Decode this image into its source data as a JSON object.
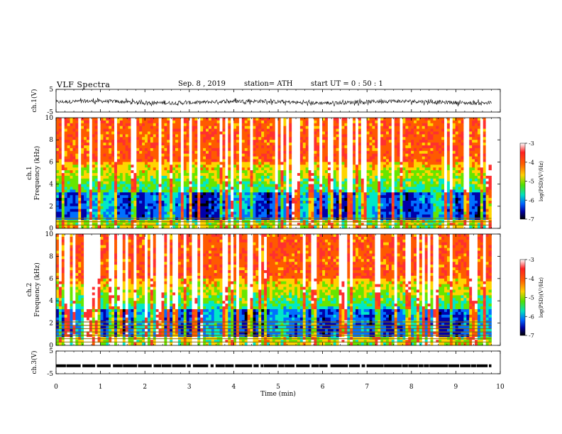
{
  "header": {
    "title": "VLF  Spectra",
    "date": "Sep. 8  , 2019",
    "station": "station= ATH",
    "start": "start  UT  =    0  : 50 : 1"
  },
  "chart_data": {
    "type": "heatmap",
    "x_axis": {
      "label": "Time  (min)",
      "range": [
        0,
        10
      ],
      "ticks": [
        "0",
        "1",
        "2",
        "3",
        "4",
        "5",
        "6",
        "7",
        "8",
        "9",
        "10"
      ]
    },
    "data_extent_min": 9.8,
    "panels": [
      {
        "name": "ch1-waveform",
        "type": "line",
        "ylabel": "ch.1(V)",
        "ylim": [
          -5,
          5
        ],
        "yticks": [
          "5",
          "-5"
        ]
      },
      {
        "name": "ch1-spectrogram",
        "type": "heatmap",
        "ylabel": "ch.1\nFrequency  (kHz)",
        "ylim": [
          0,
          10
        ],
        "yticks": [
          "0",
          "2",
          "4",
          "6",
          "8",
          "10"
        ],
        "colorbar": {
          "label": "log(PSD)(V²/Hz)",
          "ticks": [
            "-3",
            "-4",
            "-5",
            "-6",
            "-7"
          ],
          "range": [
            -7,
            -3
          ]
        },
        "harmonic_lines_khz": [
          0.3,
          0.6,
          0.9
        ]
      },
      {
        "name": "ch2-spectrogram",
        "type": "heatmap",
        "ylabel": "ch.2\nFrequency  (kHz)",
        "ylim": [
          0,
          10
        ],
        "yticks": [
          "0",
          "2",
          "4",
          "6",
          "8",
          "10"
        ],
        "colorbar": {
          "label": "log(PSD)(V²/Hz)",
          "ticks": [
            "-3",
            "-4",
            "-5",
            "-6",
            "-7"
          ],
          "range": [
            -7,
            -3
          ]
        },
        "harmonic_lines_khz": [
          0.3,
          0.6,
          0.9,
          1.2,
          1.5,
          1.8,
          2.1
        ]
      },
      {
        "name": "ch3-waveform",
        "type": "line",
        "ylabel": "ch.3(V)",
        "ylim": [
          -5,
          5
        ],
        "yticks": [
          "5",
          "-5"
        ],
        "level_v": -1.5
      }
    ],
    "colors": {
      "colormap": [
        "#ffffff",
        "#ff3030",
        "#ff5a00",
        "#ffd400",
        "#66e600",
        "#00e8c8",
        "#0070ff",
        "#0000aa",
        "#000000"
      ]
    },
    "grid": false
  }
}
